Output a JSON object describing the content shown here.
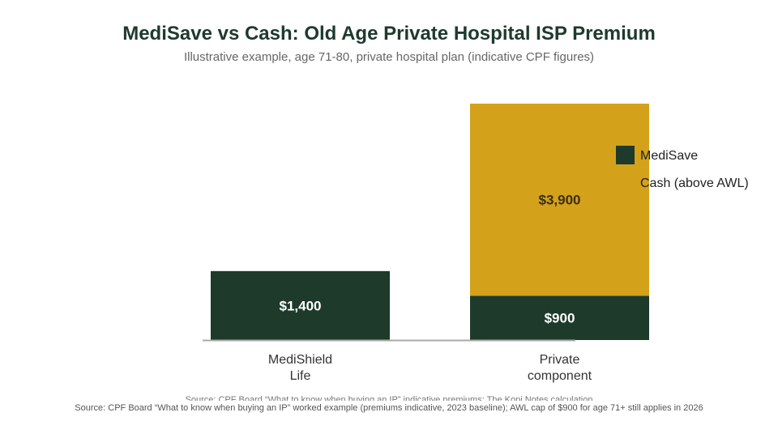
{
  "title": "MediSave vs Cash: Old Age Private Hospital ISP Premium",
  "subtitle": "Illustrative example, age 71-80, private hospital plan (indicative CPF figures)",
  "colors": {
    "medisave": "#1d3a2b",
    "cash": "#d4a11b",
    "baseline": "#aaaaaa"
  },
  "chart_data": {
    "type": "bar",
    "stacked": true,
    "categories": [
      [
        "MediShield",
        "Life"
      ],
      [
        "Private",
        "component"
      ]
    ],
    "series": [
      {
        "name": "MediSave",
        "values": [
          1400,
          900
        ],
        "labels": [
          "$1,400",
          "$900"
        ],
        "color": "#1d3a2b"
      },
      {
        "name": "Cash (above AWL)",
        "values": [
          0,
          3900
        ],
        "labels": [
          "",
          "$3,900"
        ],
        "color": "#d4a11b"
      }
    ],
    "ylim": [
      0,
      4800
    ],
    "legend_position": "top-right"
  },
  "source_hidden": "Source: CPF Board “What to know when buying an IP” indicative premiums; The Kopi Notes calculation",
  "source": "Source: CPF Board “What to know when buying an IP” worked example (premiums indicative, 2023 baseline); AWL cap of $900 for age 71+ still applies in 2026"
}
